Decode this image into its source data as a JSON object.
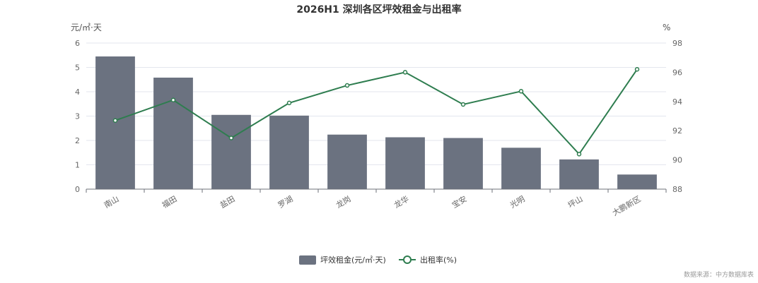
{
  "chart_data": {
    "type": "bar",
    "title": "2026H1 深圳各区坪效租金与出租率",
    "categories": [
      "南山",
      "福田",
      "盐田",
      "罗湖",
      "龙岗",
      "龙华",
      "宝安",
      "光明",
      "坪山",
      "大鹏新区"
    ],
    "left_unit": "元/㎡·天",
    "right_unit": "%",
    "left_axis": {
      "min": 0,
      "max": 6,
      "ticks": [
        0,
        1,
        2,
        3,
        4,
        5,
        6
      ]
    },
    "right_axis": {
      "min": 88,
      "max": 98,
      "ticks": [
        88,
        90,
        92,
        94,
        96,
        98
      ]
    },
    "series": [
      {
        "name": "坪效租金(元/㎡·天)",
        "type": "bar",
        "axis": "left",
        "color": "#6b7280",
        "values": [
          5.45,
          4.58,
          3.05,
          3.02,
          2.24,
          2.13,
          2.1,
          1.7,
          1.22,
          0.6
        ]
      },
      {
        "name": "出租率(%)",
        "type": "line",
        "axis": "right",
        "color": "#2e7d4f",
        "values": [
          92.7,
          94.1,
          91.5,
          93.9,
          95.1,
          96.0,
          93.8,
          94.7,
          90.4,
          96.2
        ]
      }
    ],
    "grid": true,
    "legend_position": "bottom-center"
  },
  "footer": {
    "source": "数据来源：中方数据库表"
  }
}
